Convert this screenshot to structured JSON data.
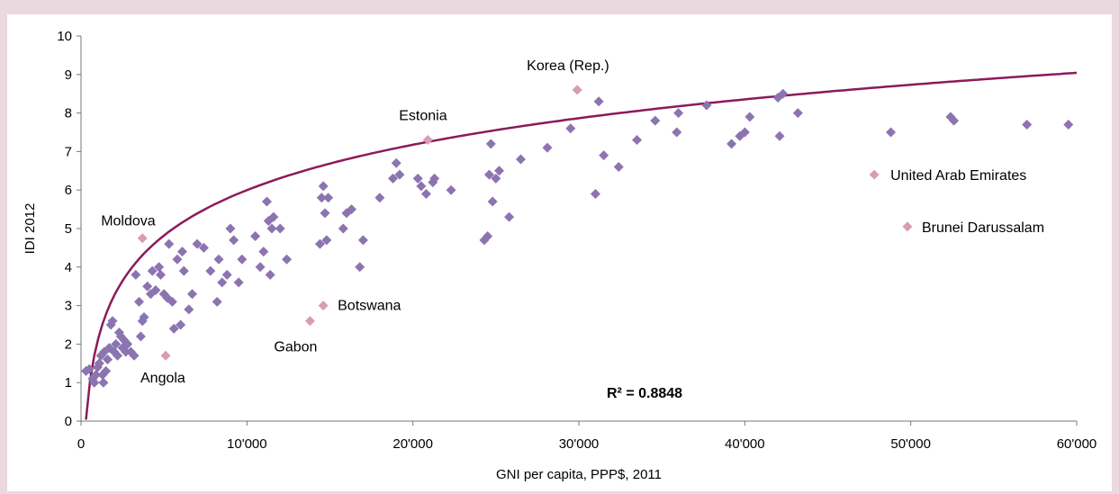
{
  "chart_data": {
    "type": "scatter",
    "title": "",
    "xlabel": "GNI per capita, PPP$, 2011",
    "ylabel": "IDI 2012",
    "xlim": [
      0,
      60000
    ],
    "ylim": [
      0,
      10
    ],
    "x_ticks": [
      0,
      10000,
      20000,
      30000,
      40000,
      50000,
      60000
    ],
    "x_tick_labels": [
      "0",
      "10'000",
      "20'000",
      "30'000",
      "40'000",
      "50'000",
      "60'000"
    ],
    "y_ticks": [
      0,
      1,
      2,
      3,
      4,
      5,
      6,
      7,
      8,
      9,
      10
    ],
    "y_tick_labels": [
      "0",
      "1",
      "2",
      "3",
      "4",
      "5",
      "6",
      "7",
      "8",
      "9",
      "10"
    ],
    "grid": false,
    "colors": {
      "main": "#8b74b0",
      "highlight": "#d99bb8",
      "trend": "#8b1a5b",
      "background": "#ead9df"
    },
    "series": [
      {
        "points": [
          [
            300,
            1.3
          ],
          [
            500,
            1.35
          ],
          [
            700,
            1.1
          ],
          [
            800,
            1.0
          ],
          [
            900,
            1.2
          ],
          [
            1000,
            1.4
          ],
          [
            1100,
            1.5
          ],
          [
            1200,
            1.7
          ],
          [
            1300,
            1.2
          ],
          [
            1350,
            1.0
          ],
          [
            1400,
            1.8
          ],
          [
            1500,
            1.3
          ],
          [
            1600,
            1.6
          ],
          [
            1700,
            1.9
          ],
          [
            1800,
            2.5
          ],
          [
            1900,
            2.6
          ],
          [
            2000,
            1.8
          ],
          [
            2100,
            2.0
          ],
          [
            2200,
            1.7
          ],
          [
            2300,
            2.3
          ],
          [
            2400,
            2.2
          ],
          [
            2500,
            1.9
          ],
          [
            2600,
            2.1
          ],
          [
            2700,
            1.8
          ],
          [
            2800,
            2.0
          ],
          [
            3000,
            1.8
          ],
          [
            3200,
            1.7
          ],
          [
            3300,
            3.8
          ],
          [
            3500,
            3.1
          ],
          [
            3600,
            2.2
          ],
          [
            3700,
            2.6
          ],
          [
            3800,
            2.7
          ],
          [
            4000,
            3.5
          ],
          [
            4200,
            3.3
          ],
          [
            4300,
            3.9
          ],
          [
            4500,
            3.4
          ],
          [
            4700,
            4.0
          ],
          [
            4800,
            3.8
          ],
          [
            5000,
            3.3
          ],
          [
            5200,
            3.2
          ],
          [
            5300,
            4.6
          ],
          [
            5500,
            3.1
          ],
          [
            5600,
            2.4
          ],
          [
            5800,
            4.2
          ],
          [
            6000,
            2.5
          ],
          [
            6100,
            4.4
          ],
          [
            6200,
            3.9
          ],
          [
            6500,
            2.9
          ],
          [
            6700,
            3.3
          ],
          [
            7000,
            4.6
          ],
          [
            7400,
            4.5
          ],
          [
            7800,
            3.9
          ],
          [
            8200,
            3.1
          ],
          [
            8300,
            4.2
          ],
          [
            8500,
            3.6
          ],
          [
            8800,
            3.8
          ],
          [
            9000,
            5.0
          ],
          [
            9200,
            4.7
          ],
          [
            9500,
            3.6
          ],
          [
            9700,
            4.2
          ],
          [
            10500,
            4.8
          ],
          [
            10800,
            4.0
          ],
          [
            11000,
            4.4
          ],
          [
            11200,
            5.7
          ],
          [
            11300,
            5.2
          ],
          [
            11400,
            3.8
          ],
          [
            11500,
            5.0
          ],
          [
            11600,
            5.3
          ],
          [
            12000,
            5.0
          ],
          [
            12400,
            4.2
          ],
          [
            14400,
            4.6
          ],
          [
            14500,
            5.8
          ],
          [
            14600,
            6.1
          ],
          [
            14700,
            5.4
          ],
          [
            14800,
            4.7
          ],
          [
            14900,
            5.8
          ],
          [
            15800,
            5.0
          ],
          [
            16000,
            5.4
          ],
          [
            16300,
            5.5
          ],
          [
            16800,
            4.0
          ],
          [
            17000,
            4.7
          ],
          [
            18000,
            5.8
          ],
          [
            18800,
            6.3
          ],
          [
            19000,
            6.7
          ],
          [
            19200,
            6.4
          ],
          [
            20300,
            6.3
          ],
          [
            20500,
            6.1
          ],
          [
            20800,
            5.9
          ],
          [
            21200,
            6.2
          ],
          [
            21300,
            6.3
          ],
          [
            22300,
            6.0
          ],
          [
            24300,
            4.7
          ],
          [
            24500,
            4.8
          ],
          [
            24600,
            6.4
          ],
          [
            24700,
            7.2
          ],
          [
            24800,
            5.7
          ],
          [
            25000,
            6.3
          ],
          [
            25200,
            6.5
          ],
          [
            25800,
            5.3
          ],
          [
            26500,
            6.8
          ],
          [
            28100,
            7.1
          ],
          [
            29500,
            7.6
          ],
          [
            31000,
            5.9
          ],
          [
            31200,
            8.3
          ],
          [
            31500,
            6.9
          ],
          [
            32400,
            6.6
          ],
          [
            33500,
            7.3
          ],
          [
            34600,
            7.8
          ],
          [
            35900,
            7.5
          ],
          [
            36000,
            8.0
          ],
          [
            37700,
            8.2
          ],
          [
            39200,
            7.2
          ],
          [
            39700,
            7.4
          ],
          [
            40000,
            7.5
          ],
          [
            40300,
            7.9
          ],
          [
            42000,
            8.4
          ],
          [
            42100,
            7.4
          ],
          [
            42300,
            8.5
          ],
          [
            43200,
            8.0
          ],
          [
            48800,
            7.5
          ],
          [
            52400,
            7.9
          ],
          [
            52600,
            7.8
          ],
          [
            57000,
            7.7
          ],
          [
            59500,
            7.7
          ]
        ]
      },
      {
        "points": [
          [
            3700,
            4.75
          ],
          [
            5100,
            1.7
          ],
          [
            13800,
            2.6
          ],
          [
            14600,
            3.0
          ],
          [
            20900,
            7.3
          ],
          [
            29900,
            8.6
          ],
          [
            47800,
            6.4
          ],
          [
            49800,
            5.05
          ]
        ]
      }
    ],
    "annotations": [
      {
        "text": "Moldova",
        "x": 3700,
        "y": 4.75
      },
      {
        "text": "Angola",
        "x": 5100,
        "y": 1.7
      },
      {
        "text": "Gabon",
        "x": 13800,
        "y": 2.6
      },
      {
        "text": "Botswana",
        "x": 14600,
        "y": 3.0
      },
      {
        "text": "Estonia",
        "x": 20900,
        "y": 7.3
      },
      {
        "text": "Korea (Rep.)",
        "x": 29900,
        "y": 8.6
      },
      {
        "text": "United Arab Emirates",
        "x": 47800,
        "y": 6.4
      },
      {
        "text": "Brunei Darussalam",
        "x": 49800,
        "y": 5.05
      }
    ],
    "trendline": {
      "type": "logarithmic",
      "a": 1.7,
      "b": -9.66,
      "x_start": 300,
      "x_end": 60000,
      "label": "R² = 0.8848"
    }
  }
}
